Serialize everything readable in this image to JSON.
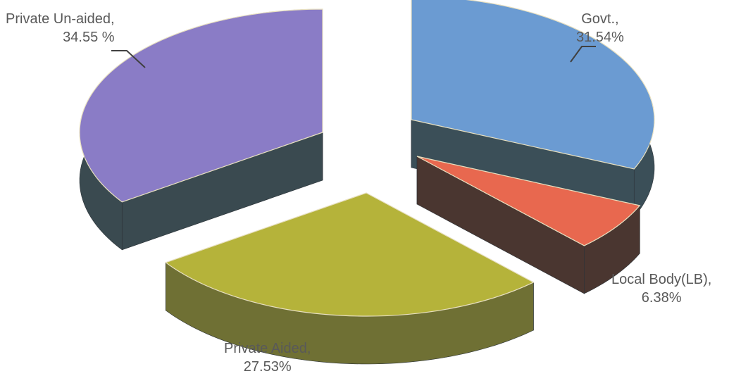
{
  "chart_data": {
    "type": "pie",
    "title": "",
    "labels": [
      "Govt.,",
      "Local Body(LB),",
      "Private Aided,",
      "Private Un-aided,"
    ],
    "value_labels": [
      "31.54%",
      "6.38%",
      "27.53%",
      "34.55 %"
    ],
    "values": [
      31.54,
      6.38,
      27.53,
      34.55
    ],
    "colors": {
      "top": [
        "#6b9bd2",
        "#e8684f",
        "#b5b33a",
        "#8a7cc6"
      ],
      "side": [
        "#3b4f58",
        "#4a3630",
        "#6f7034",
        "#3a4a50"
      ]
    },
    "style": "3d-exploded",
    "legend": "none"
  }
}
